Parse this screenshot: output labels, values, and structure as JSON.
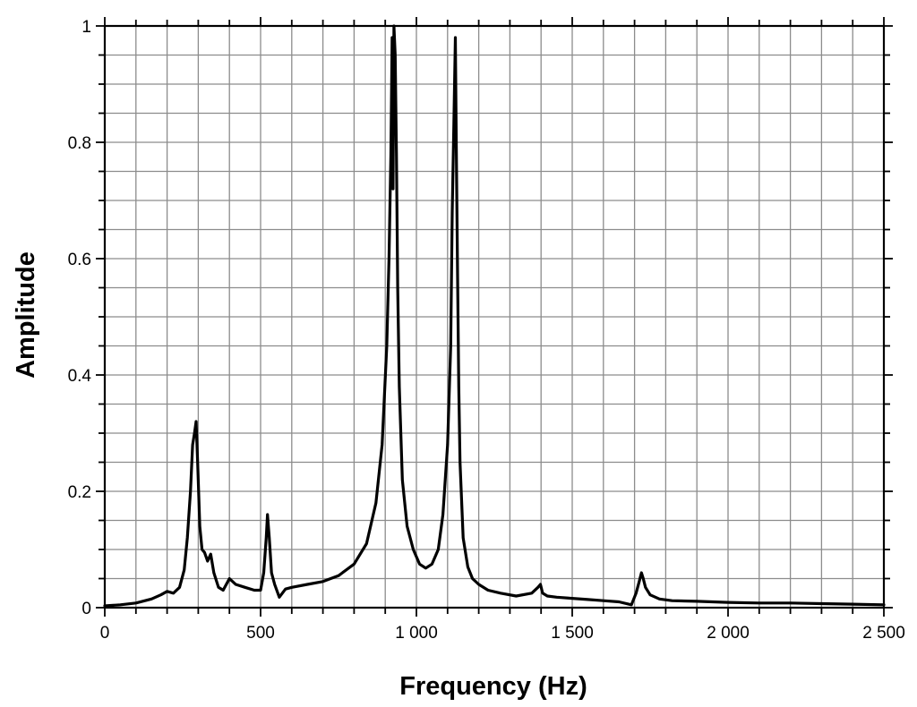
{
  "chart_data": {
    "type": "line",
    "xlabel": "Frequency (Hz)",
    "ylabel": "Amplitude",
    "xlim": [
      0,
      2500
    ],
    "ylim": [
      0,
      1
    ],
    "x_ticks": [
      0,
      500,
      1000,
      1500,
      2000,
      2500
    ],
    "x_tick_labels": [
      "0",
      "500",
      "1 000",
      "1 500",
      "2 000",
      "2 500"
    ],
    "y_ticks": [
      0,
      0.2,
      0.4,
      0.6,
      0.8,
      1
    ],
    "y_tick_labels": [
      "0",
      "0.2",
      "0.4",
      "0.6",
      "0.8",
      "1"
    ],
    "grid": true,
    "line_color": "#000000",
    "series": [
      {
        "x": [
          0,
          50,
          100,
          150,
          180,
          200,
          220,
          240,
          255,
          265,
          275,
          282,
          288,
          293,
          298,
          305,
          312,
          320,
          330,
          340,
          350,
          365,
          380,
          400,
          420,
          450,
          480,
          500,
          510,
          518,
          522,
          528,
          535,
          545,
          560,
          580,
          600,
          650,
          700,
          750,
          800,
          840,
          870,
          890,
          905,
          912,
          918,
          922,
          925,
          928,
          932,
          936,
          940,
          945,
          955,
          970,
          990,
          1010,
          1030,
          1050,
          1070,
          1085,
          1100,
          1110,
          1115,
          1120,
          1125,
          1128,
          1132,
          1136,
          1140,
          1150,
          1165,
          1180,
          1200,
          1230,
          1270,
          1320,
          1370,
          1390,
          1398,
          1405,
          1420,
          1450,
          1500,
          1550,
          1600,
          1650,
          1690,
          1705,
          1715,
          1722,
          1728,
          1735,
          1750,
          1780,
          1820,
          1900,
          2000,
          2100,
          2200,
          2300,
          2400,
          2500
        ],
        "y": [
          0.003,
          0.005,
          0.008,
          0.015,
          0.022,
          0.028,
          0.025,
          0.035,
          0.065,
          0.12,
          0.2,
          0.28,
          0.3,
          0.32,
          0.25,
          0.14,
          0.1,
          0.095,
          0.08,
          0.092,
          0.06,
          0.035,
          0.03,
          0.05,
          0.04,
          0.035,
          0.03,
          0.03,
          0.06,
          0.12,
          0.16,
          0.12,
          0.06,
          0.04,
          0.018,
          0.032,
          0.035,
          0.04,
          0.045,
          0.055,
          0.075,
          0.11,
          0.18,
          0.28,
          0.45,
          0.6,
          0.78,
          0.98,
          0.72,
          1.0,
          0.95,
          0.78,
          0.55,
          0.38,
          0.22,
          0.14,
          0.1,
          0.075,
          0.068,
          0.075,
          0.1,
          0.16,
          0.28,
          0.45,
          0.68,
          0.83,
          0.98,
          0.8,
          0.58,
          0.38,
          0.25,
          0.12,
          0.07,
          0.05,
          0.04,
          0.03,
          0.025,
          0.02,
          0.025,
          0.035,
          0.04,
          0.025,
          0.02,
          0.018,
          0.016,
          0.014,
          0.012,
          0.01,
          0.005,
          0.025,
          0.045,
          0.06,
          0.05,
          0.035,
          0.022,
          0.015,
          0.012,
          0.011,
          0.009,
          0.008,
          0.008,
          0.007,
          0.006,
          0.005
        ]
      }
    ]
  }
}
